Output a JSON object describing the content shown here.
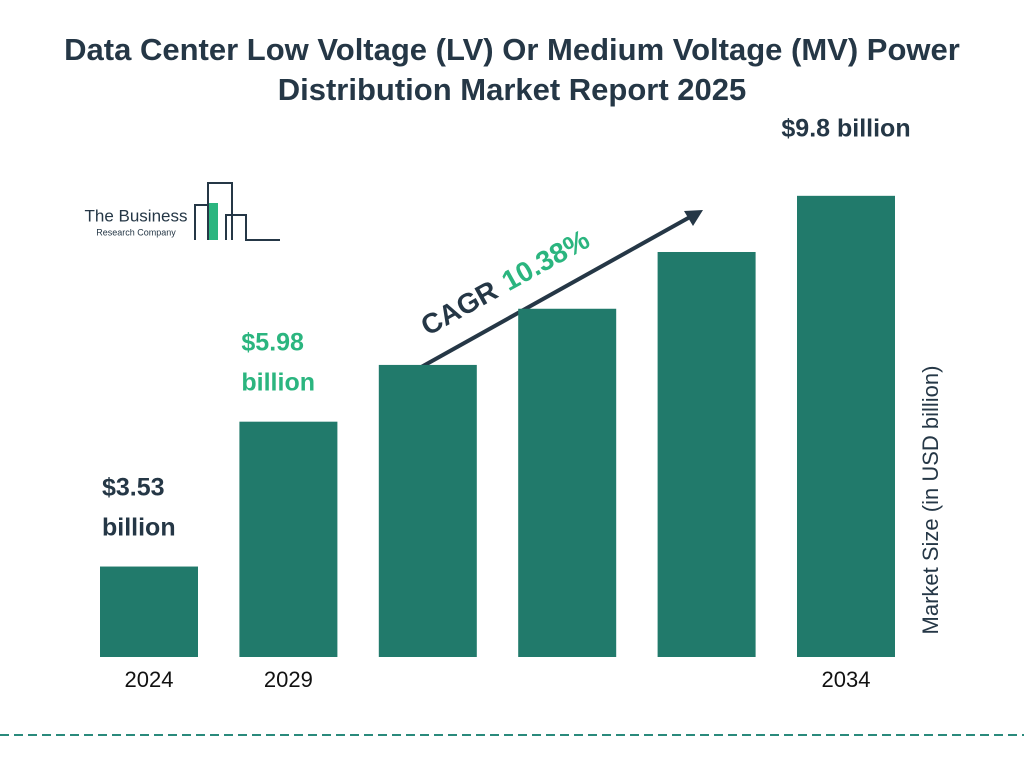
{
  "chart_data": {
    "type": "bar",
    "title": "Data Center Low Voltage (LV) Or Medium Voltage (MV) Power Distribution Market Report 2025",
    "categories": [
      "2024",
      "2029",
      null,
      null,
      null,
      "2034"
    ],
    "values": [
      3.53,
      5.98,
      6.94,
      7.89,
      8.85,
      9.8
    ],
    "value_labels": [
      "$3.53 billion",
      "$5.98 billion",
      null,
      null,
      null,
      "$9.8 billion"
    ],
    "value_label_colors": [
      "#253746",
      "#2bb57f",
      null,
      null,
      null,
      "#253746"
    ],
    "color": "#217a6b",
    "ylim": [
      2,
      10
    ],
    "y_axis_label": "Market Size (in USD billion)",
    "annotation": {
      "label": "CAGR",
      "value": "10.38%"
    },
    "logo": {
      "line1": "The Business",
      "line2": "Research Company"
    }
  }
}
